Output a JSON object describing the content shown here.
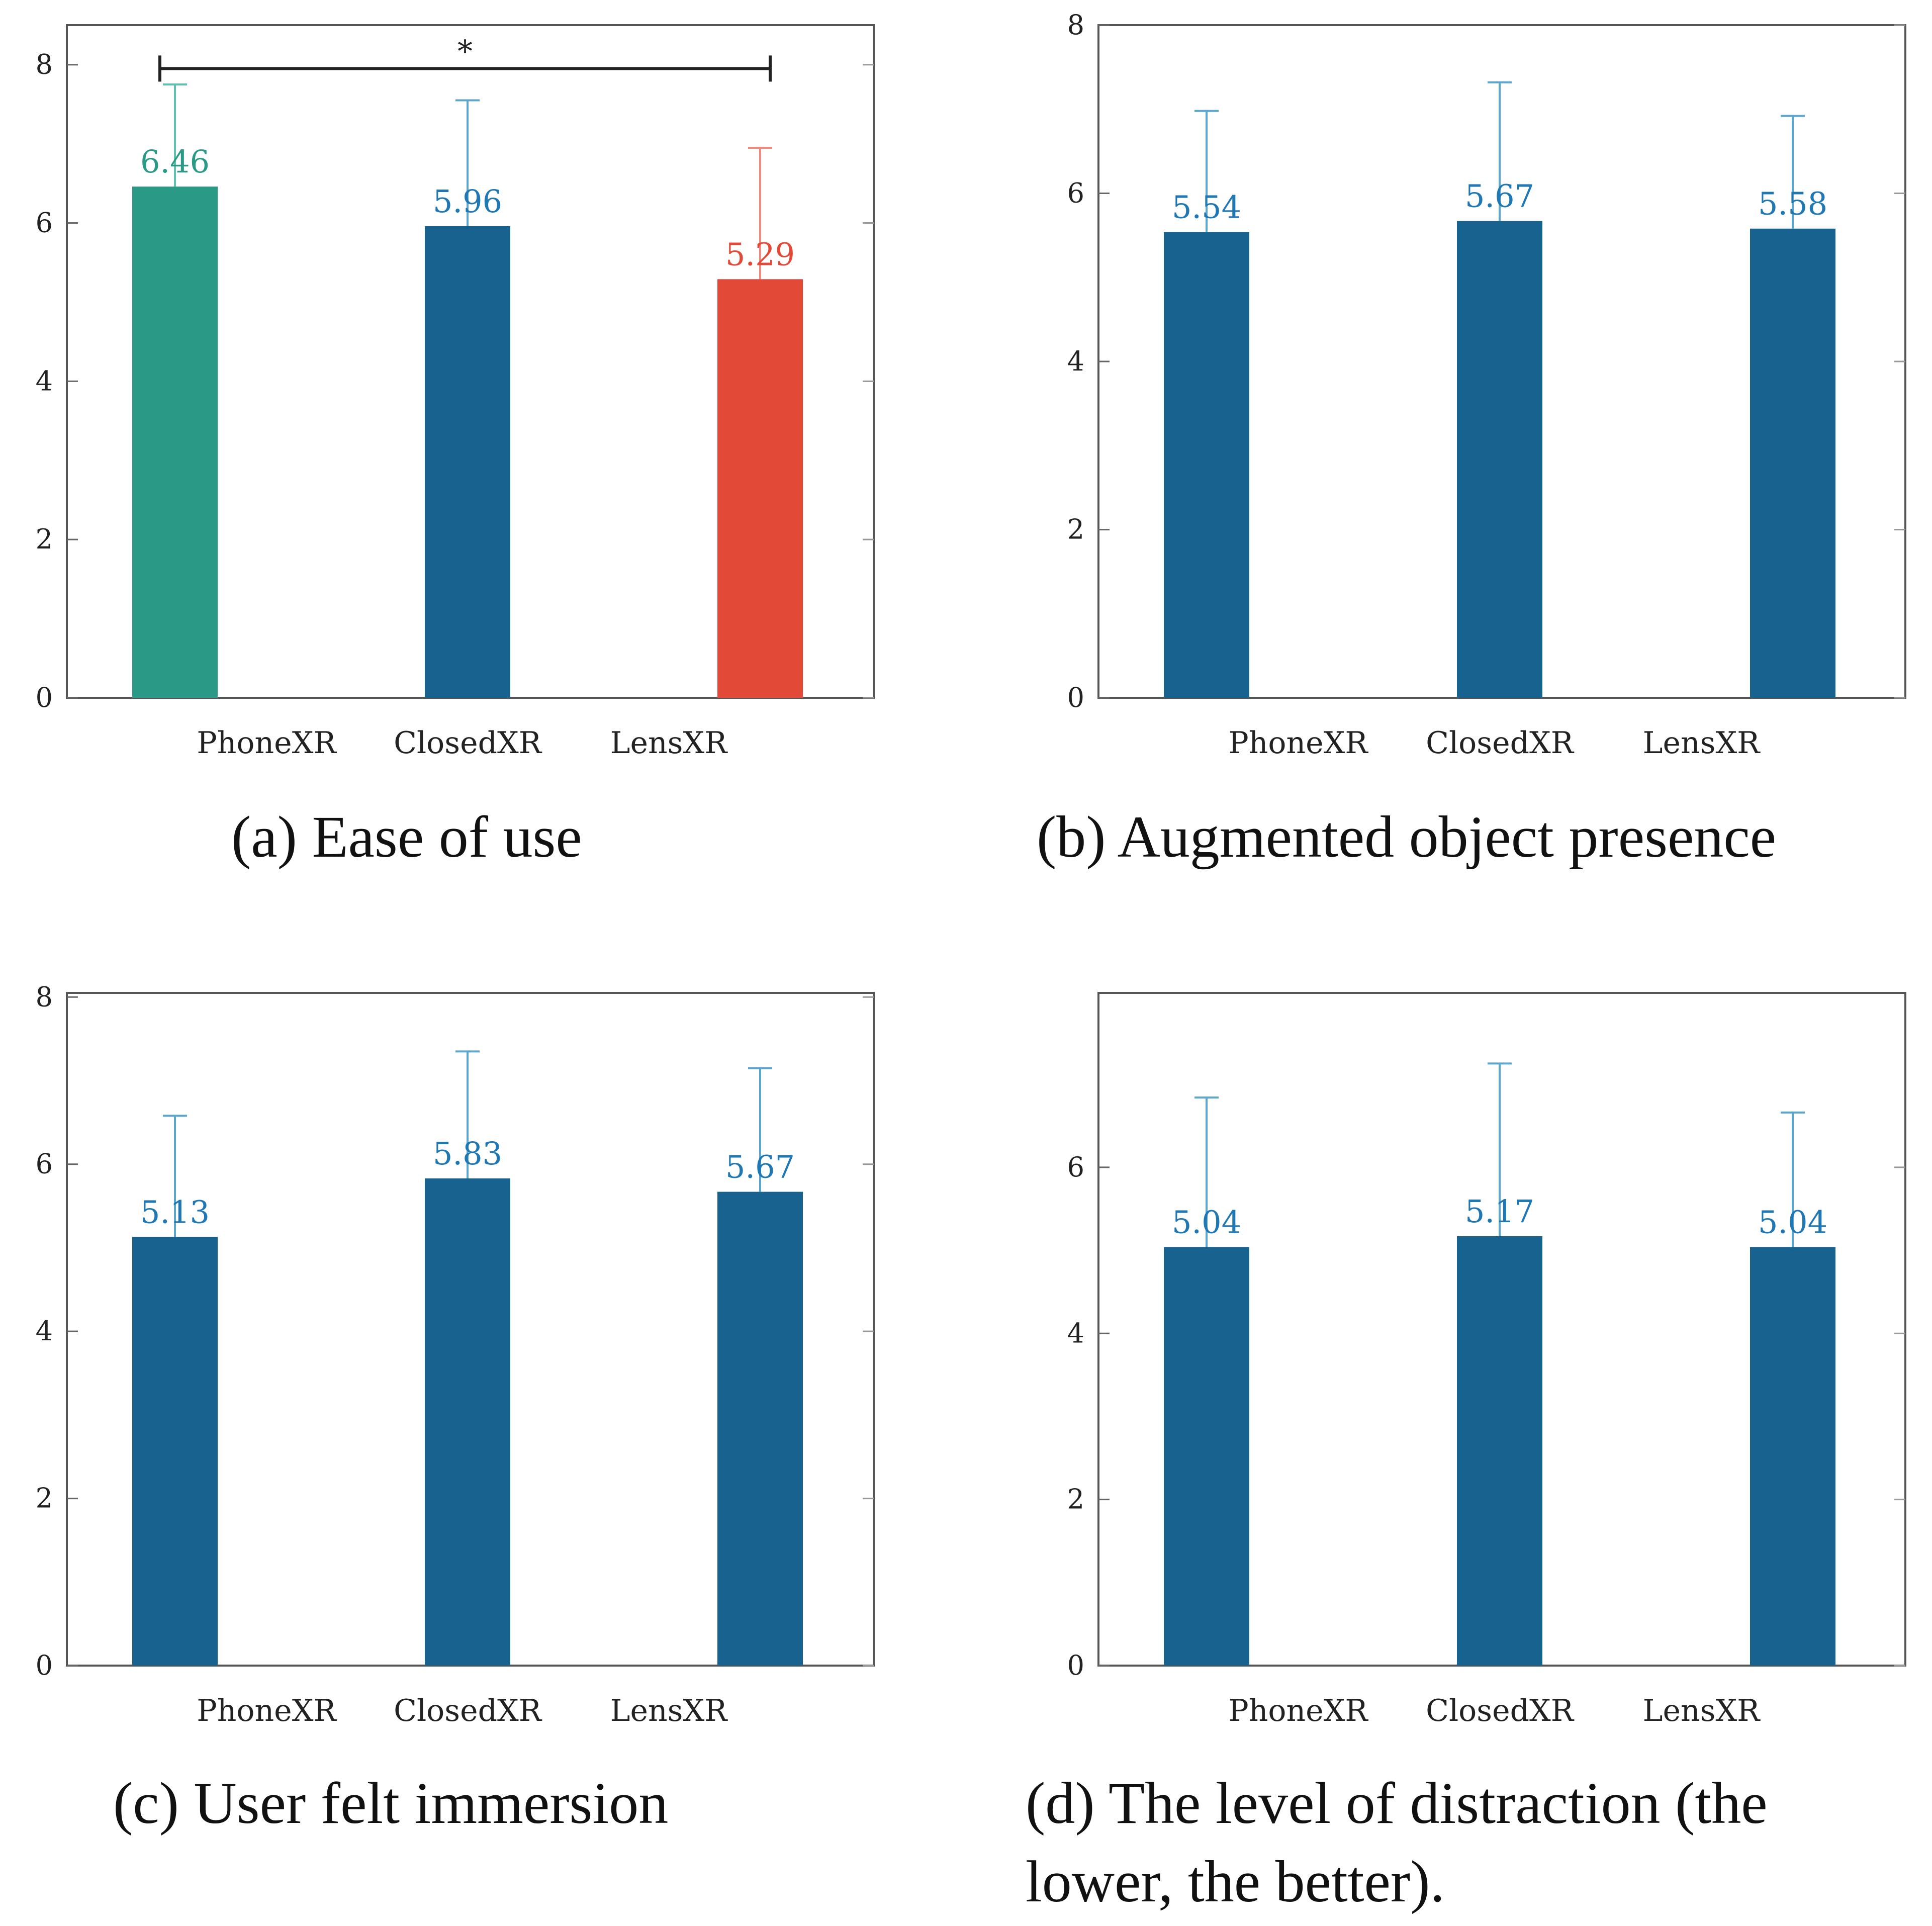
{
  "chart_data": [
    {
      "id": "a",
      "type": "bar",
      "title": "(a) Ease of use",
      "categories": [
        "PhoneXR",
        "ClosedXR",
        "LensXR"
      ],
      "values": [
        6.46,
        5.96,
        5.29
      ],
      "value_labels": [
        "6.46",
        "5.96",
        "5.29"
      ],
      "error_upper": [
        7.75,
        7.55,
        6.95
      ],
      "bar_colors": [
        "#2a9a87",
        "#17628e",
        "#e24a37"
      ],
      "label_colors": [
        "#2a9a87",
        "#1f77b4",
        "#e24a37"
      ],
      "error_colors": [
        "#5fbfb0",
        "#5aa6cf",
        "#f08a7e"
      ],
      "ylim": [
        0,
        8.5
      ],
      "yticks": [
        0,
        2,
        4,
        6,
        8
      ],
      "ytick_labels": [
        "0",
        "2",
        "4",
        "6",
        "8"
      ],
      "significance": {
        "from": "PhoneXR",
        "to": "LensXR",
        "y": 7.85,
        "label": "*"
      }
    },
    {
      "id": "b",
      "type": "bar",
      "title": "(b) Augmented object presence",
      "categories": [
        "PhoneXR",
        "ClosedXR",
        "LensXR"
      ],
      "values": [
        5.54,
        5.67,
        5.58
      ],
      "value_labels": [
        "5.54",
        "5.67",
        "5.58"
      ],
      "error_upper": [
        6.98,
        7.32,
        6.92
      ],
      "bar_colors": [
        "#17628e",
        "#17628e",
        "#17628e"
      ],
      "label_colors": [
        "#1f77b4",
        "#1f77b4",
        "#1f77b4"
      ],
      "error_colors": [
        "#5aa6cf",
        "#5aa6cf",
        "#5aa6cf"
      ],
      "ylim": [
        0,
        8
      ],
      "yticks": [
        0,
        2,
        4,
        6,
        8
      ],
      "ytick_labels": [
        "0",
        "2",
        "4",
        "6",
        "8"
      ]
    },
    {
      "id": "c",
      "type": "bar",
      "title": "(c) User felt immersion",
      "categories": [
        "PhoneXR",
        "ClosedXR",
        "LensXR"
      ],
      "values": [
        5.13,
        5.83,
        5.67
      ],
      "value_labels": [
        "5.13",
        "5.83",
        "5.67"
      ],
      "error_upper": [
        6.58,
        7.35,
        7.15
      ],
      "bar_colors": [
        "#17628e",
        "#17628e",
        "#17628e"
      ],
      "label_colors": [
        "#1f77b4",
        "#1f77b4",
        "#1f77b4"
      ],
      "error_colors": [
        "#5aa6cf",
        "#5aa6cf",
        "#5aa6cf"
      ],
      "ylim": [
        0,
        8.05
      ],
      "yticks": [
        0,
        2,
        4,
        6,
        8
      ],
      "ytick_labels": [
        "0",
        "2",
        "4",
        "6",
        "8"
      ]
    },
    {
      "id": "d",
      "type": "bar",
      "title": "(d) The level of distraction (the lower, the better).",
      "title_lines": [
        "(d) The level of distraction (the",
        "lower, the better)."
      ],
      "categories": [
        "PhoneXR",
        "ClosedXR",
        "LensXR"
      ],
      "values": [
        5.04,
        5.17,
        5.04
      ],
      "value_labels": [
        "5.04",
        "5.17",
        "5.04"
      ],
      "error_upper": [
        6.84,
        7.25,
        6.66
      ],
      "bar_colors": [
        "#17628e",
        "#17628e",
        "#17628e"
      ],
      "label_colors": [
        "#1f77b4",
        "#1f77b4",
        "#1f77b4"
      ],
      "error_colors": [
        "#5aa6cf",
        "#5aa6cf",
        "#5aa6cf"
      ],
      "ylim": [
        0,
        8.1
      ],
      "yticks": [
        0,
        2,
        4,
        6
      ],
      "ytick_labels": [
        "0",
        "2",
        "4",
        "6"
      ]
    }
  ]
}
